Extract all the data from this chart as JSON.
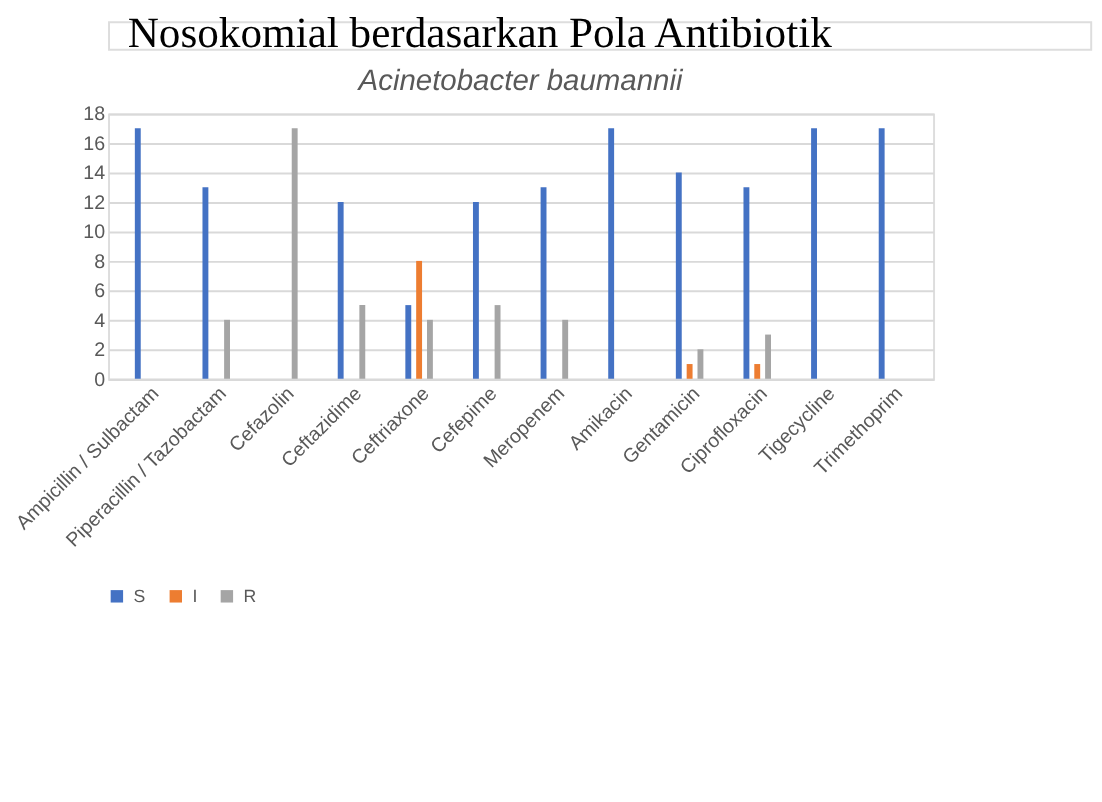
{
  "chart_data": {
    "type": "bar",
    "title": "Acinetobacter baumannii",
    "annotations": [
      "Nosokomial berdasarkan Pola Antibiotik"
    ],
    "categories": [
      "Ampicillin / Sulbactam",
      "Piperacillin / Tazobactam",
      "Cefazolin",
      "Ceftazidime",
      "Ceftriaxone",
      "Cefepime",
      "Meropenem",
      "Amikacin",
      "Gentamicin",
      "Ciprofloxacin",
      "Tigecycline",
      "Trimethoprim"
    ],
    "series": [
      {
        "name": "S",
        "color": "#4472c4",
        "values": [
          17,
          13,
          0,
          12,
          5,
          12,
          13,
          17,
          14,
          13,
          17,
          17
        ]
      },
      {
        "name": "I",
        "color": "#ed7d31",
        "values": [
          0,
          0,
          0,
          0,
          8,
          0,
          0,
          0,
          1,
          1,
          0,
          0
        ]
      },
      {
        "name": "R",
        "color": "#a5a5a5",
        "values": [
          0,
          4,
          17,
          5,
          4,
          5,
          4,
          0,
          2,
          3,
          0,
          0
        ]
      }
    ],
    "ylim": [
      0,
      18
    ],
    "yticks": [
      0,
      2,
      4,
      6,
      8,
      10,
      12,
      14,
      16,
      18
    ],
    "grid": "y",
    "legend": "bottom"
  }
}
